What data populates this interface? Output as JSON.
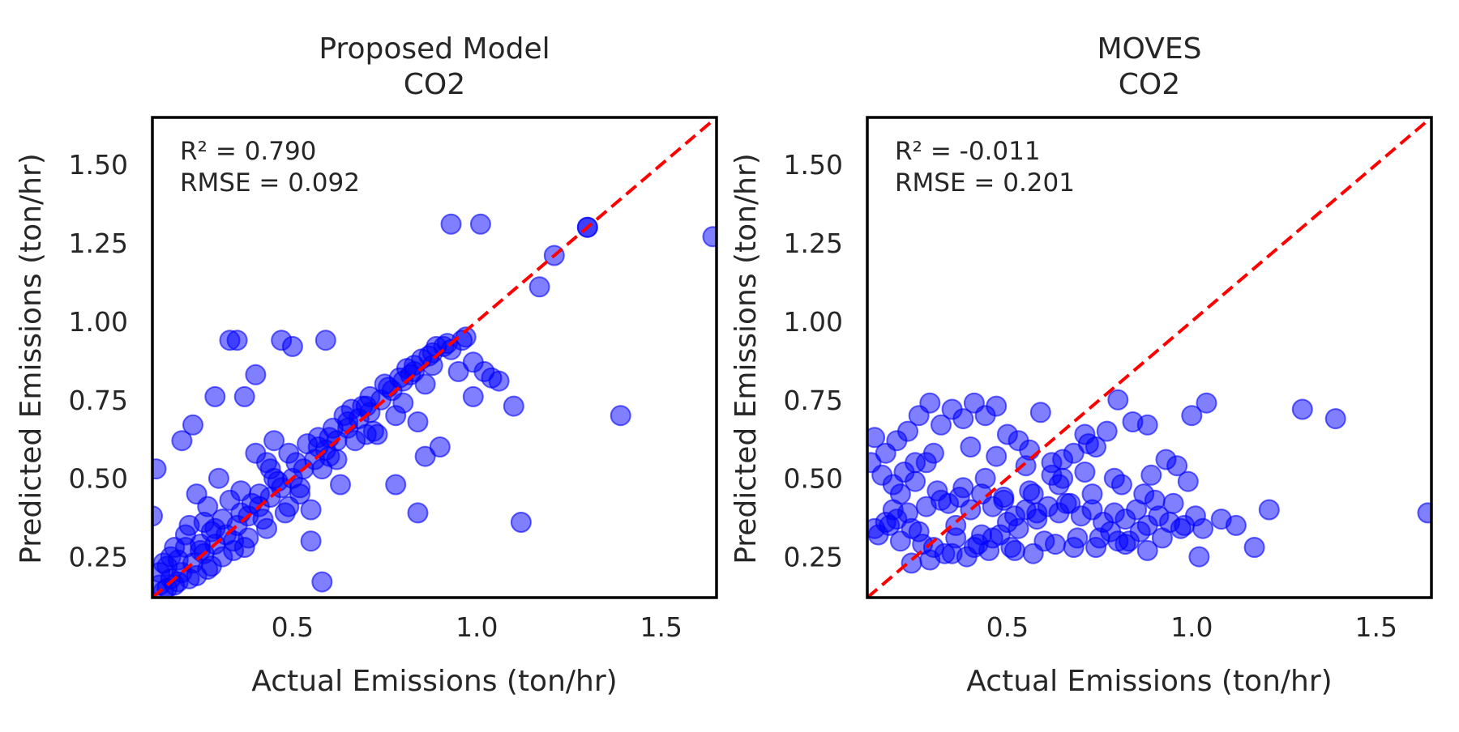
{
  "colors": {
    "points": "#0000ff",
    "identity_line": "#ff0000",
    "frame": "#000000"
  },
  "chart_data": [
    {
      "type": "scatter",
      "title": "Proposed Model",
      "subtitle": "CO2",
      "xlabel": "Actual Emissions (ton/hr)",
      "ylabel": "Predicted Emissions (ton/hr)",
      "xlim": [
        0.12,
        1.65
      ],
      "ylim": [
        0.12,
        1.65
      ],
      "xticks": [
        "0.5",
        "1.0",
        "1.5"
      ],
      "yticks": [
        "0.25",
        "0.50",
        "0.75",
        "1.00",
        "1.25",
        "1.50"
      ],
      "stats": [
        "R² = 0.790",
        "RMSE = 0.092"
      ],
      "reference_line": "y = x",
      "points": {
        "x": [
          0.93,
          1.01,
          1.3,
          1.3,
          1.21,
          1.17,
          1.64,
          1.39,
          1.12,
          0.84,
          1.1,
          1.06,
          1.02,
          0.99,
          0.96,
          0.91,
          0.88,
          0.85,
          0.83,
          0.8,
          0.77,
          0.74,
          0.71,
          0.68,
          0.65,
          0.62,
          0.59,
          0.56,
          0.53,
          0.5,
          0.47,
          0.44,
          0.41,
          0.38,
          0.35,
          0.32,
          0.29,
          0.26,
          0.23,
          0.2,
          0.17,
          0.14,
          0.33,
          0.35,
          0.47,
          0.5,
          0.59,
          0.4,
          0.37,
          0.29,
          0.23,
          0.2,
          0.58,
          0.55,
          0.12,
          0.13,
          0.15,
          0.9,
          0.86,
          0.78,
          0.73,
          0.69,
          0.64,
          0.6,
          0.57,
          0.52,
          0.48,
          0.45,
          0.43,
          0.39,
          0.36,
          0.34,
          0.31,
          0.28,
          0.25,
          0.22,
          0.19,
          0.16,
          0.14,
          0.3,
          0.27,
          0.24,
          0.21,
          0.18,
          0.44,
          0.49,
          0.54,
          0.61,
          0.66,
          0.71,
          0.75,
          0.81,
          0.87,
          0.92,
          0.97,
          0.95,
          1.04,
          0.99,
          0.84,
          0.78,
          0.7,
          0.62,
          0.52,
          0.42,
          0.38,
          0.34,
          0.28,
          0.24,
          0.19,
          0.16,
          0.45,
          0.4,
          0.33,
          0.26,
          0.21,
          0.17,
          0.55,
          0.63,
          0.72,
          0.8,
          0.86,
          0.67,
          0.58,
          0.49,
          0.43,
          0.37,
          0.31,
          0.27,
          0.22,
          0.18,
          0.15,
          0.25,
          0.29,
          0.36,
          0.41,
          0.46,
          0.51,
          0.57,
          0.6,
          0.65,
          0.7,
          0.76,
          0.82,
          0.88,
          0.93,
          0.89,
          0.83,
          0.79
        ],
        "y": [
          1.31,
          1.31,
          1.3,
          1.3,
          1.21,
          1.11,
          1.27,
          0.7,
          0.36,
          0.39,
          0.73,
          0.81,
          0.84,
          0.87,
          0.94,
          0.92,
          0.9,
          0.88,
          0.84,
          0.81,
          0.78,
          0.75,
          0.71,
          0.69,
          0.66,
          0.62,
          0.59,
          0.56,
          0.53,
          0.5,
          0.47,
          0.44,
          0.41,
          0.38,
          0.35,
          0.32,
          0.29,
          0.26,
          0.23,
          0.2,
          0.18,
          0.16,
          0.94,
          0.94,
          0.94,
          0.92,
          0.94,
          0.83,
          0.76,
          0.76,
          0.67,
          0.62,
          0.17,
          0.3,
          0.38,
          0.53,
          0.23,
          0.6,
          0.57,
          0.48,
          0.64,
          0.73,
          0.7,
          0.57,
          0.63,
          0.45,
          0.39,
          0.5,
          0.55,
          0.42,
          0.46,
          0.3,
          0.37,
          0.33,
          0.27,
          0.35,
          0.24,
          0.22,
          0.2,
          0.5,
          0.41,
          0.45,
          0.32,
          0.28,
          0.53,
          0.58,
          0.61,
          0.66,
          0.72,
          0.76,
          0.8,
          0.85,
          0.89,
          0.93,
          0.95,
          0.84,
          0.82,
          0.76,
          0.68,
          0.7,
          0.64,
          0.56,
          0.47,
          0.37,
          0.31,
          0.27,
          0.22,
          0.19,
          0.17,
          0.15,
          0.62,
          0.58,
          0.43,
          0.36,
          0.28,
          0.25,
          0.4,
          0.48,
          0.65,
          0.74,
          0.8,
          0.62,
          0.53,
          0.41,
          0.34,
          0.28,
          0.25,
          0.21,
          0.18,
          0.16,
          0.14,
          0.29,
          0.34,
          0.39,
          0.45,
          0.49,
          0.55,
          0.6,
          0.63,
          0.68,
          0.73,
          0.79,
          0.83,
          0.86,
          0.91,
          0.92,
          0.86,
          0.82
        ]
      }
    },
    {
      "type": "scatter",
      "title": "MOVES",
      "subtitle": "CO2",
      "xlabel": "Actual Emissions (ton/hr)",
      "ylabel": "Predicted Emissions (ton/hr)",
      "xlim": [
        0.12,
        1.65
      ],
      "ylim": [
        0.12,
        1.65
      ],
      "xticks": [
        "0.5",
        "1.0",
        "1.5"
      ],
      "yticks": [
        "0.25",
        "0.50",
        "0.75",
        "1.00",
        "1.25",
        "1.50"
      ],
      "stats": [
        "R² = -0.011",
        "RMSE = 0.201"
      ],
      "reference_line": "y = x",
      "points": {
        "x": [
          1.3,
          1.39,
          1.64,
          1.21,
          1.17,
          1.12,
          1.08,
          1.03,
          1.02,
          1.04,
          1.0,
          0.99,
          0.93,
          0.9,
          0.88,
          0.84,
          0.8,
          0.77,
          0.74,
          0.71,
          0.68,
          0.65,
          0.62,
          0.59,
          0.56,
          0.53,
          0.5,
          0.47,
          0.44,
          0.41,
          0.38,
          0.35,
          0.32,
          0.29,
          0.26,
          0.23,
          0.2,
          0.17,
          0.14,
          0.13,
          0.16,
          0.19,
          0.22,
          0.25,
          0.28,
          0.31,
          0.34,
          0.37,
          0.4,
          0.43,
          0.46,
          0.49,
          0.52,
          0.55,
          0.58,
          0.61,
          0.64,
          0.67,
          0.7,
          0.73,
          0.76,
          0.79,
          0.82,
          0.85,
          0.88,
          0.91,
          0.94,
          0.97,
          0.83,
          0.88,
          0.78,
          0.82,
          0.75,
          0.68,
          0.6,
          0.52,
          0.48,
          0.42,
          0.36,
          0.3,
          0.26,
          0.21,
          0.18,
          0.15,
          0.2,
          0.24,
          0.27,
          0.33,
          0.39,
          0.45,
          0.51,
          0.57,
          0.63,
          0.69,
          0.74,
          0.8,
          0.86,
          0.92,
          0.98,
          1.01,
          0.95,
          0.87,
          0.79,
          0.71,
          0.64,
          0.56,
          0.49,
          0.44,
          0.38,
          0.32,
          0.28,
          0.23,
          0.17,
          0.14,
          0.4,
          0.47,
          0.55,
          0.62,
          0.3,
          0.25,
          0.21,
          0.36,
          0.43,
          0.5,
          0.58,
          0.66,
          0.73,
          0.81,
          0.89,
          0.96,
          0.72,
          0.65,
          0.57,
          0.53,
          0.46,
          0.41,
          0.35,
          0.29,
          0.24,
          0.19
        ],
        "y": [
          0.72,
          0.69,
          0.39,
          0.4,
          0.28,
          0.35,
          0.37,
          0.34,
          0.25,
          0.74,
          0.7,
          0.49,
          0.56,
          0.43,
          0.67,
          0.68,
          0.75,
          0.65,
          0.6,
          0.64,
          0.58,
          0.56,
          0.55,
          0.71,
          0.59,
          0.62,
          0.64,
          0.73,
          0.7,
          0.74,
          0.69,
          0.72,
          0.67,
          0.74,
          0.7,
          0.65,
          0.62,
          0.58,
          0.63,
          0.55,
          0.51,
          0.48,
          0.52,
          0.49,
          0.55,
          0.46,
          0.42,
          0.44,
          0.4,
          0.45,
          0.41,
          0.43,
          0.38,
          0.4,
          0.37,
          0.41,
          0.39,
          0.42,
          0.38,
          0.4,
          0.36,
          0.39,
          0.37,
          0.4,
          0.35,
          0.38,
          0.36,
          0.34,
          0.3,
          0.27,
          0.33,
          0.29,
          0.31,
          0.28,
          0.3,
          0.27,
          0.32,
          0.29,
          0.31,
          0.28,
          0.33,
          0.3,
          0.35,
          0.32,
          0.37,
          0.34,
          0.29,
          0.26,
          0.25,
          0.27,
          0.28,
          0.26,
          0.29,
          0.31,
          0.28,
          0.3,
          0.33,
          0.31,
          0.35,
          0.38,
          0.42,
          0.45,
          0.5,
          0.52,
          0.48,
          0.46,
          0.44,
          0.5,
          0.47,
          0.43,
          0.41,
          0.39,
          0.36,
          0.34,
          0.6,
          0.57,
          0.54,
          0.51,
          0.58,
          0.55,
          0.45,
          0.35,
          0.32,
          0.36,
          0.39,
          0.42,
          0.45,
          0.48,
          0.51,
          0.54,
          0.61,
          0.5,
          0.45,
          0.34,
          0.31,
          0.28,
          0.26,
          0.24,
          0.23,
          0.4
        ]
      }
    }
  ]
}
